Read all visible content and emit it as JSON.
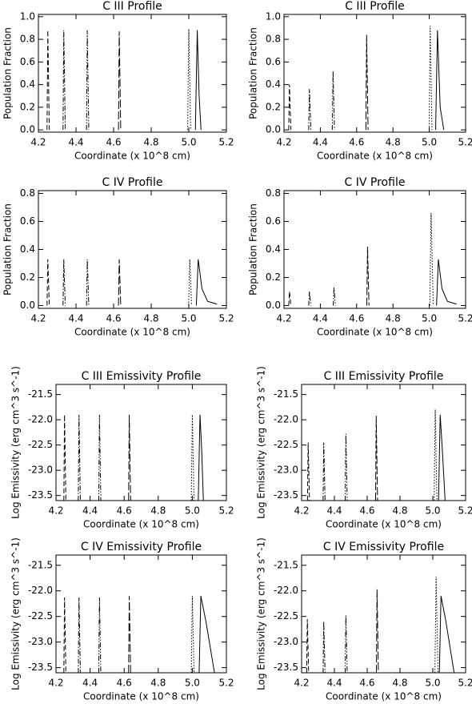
{
  "chart_data": [
    {
      "type": "line",
      "title": "C III Profile",
      "x_label": "Coordinate (x 10^8 cm)",
      "y_label": "Population Fraction",
      "xlim": [
        4.2,
        5.2
      ],
      "xticks": [
        4.2,
        4.4,
        4.6,
        4.8,
        {
          "value": 5,
          "label": "5.0"
        },
        5.2
      ],
      "ylim": [
        -0.02,
        1.02
      ],
      "yticks": [
        {
          "value": 0,
          "label": "0.0"
        },
        0.2,
        0.4,
        0.6,
        0.8,
        {
          "value": 1,
          "label": "1.0"
        }
      ],
      "color": "#000",
      "series": [
        {
          "style": "dash",
          "x": [
            4.246,
            4.25,
            4.258
          ],
          "values": [
            0,
            0.88,
            0
          ]
        },
        {
          "style": "dashdot",
          "x": [
            4.331,
            4.335,
            4.343
          ],
          "values": [
            0,
            0.88,
            0
          ]
        },
        {
          "style": "dashdotdot",
          "x": [
            4.456,
            4.46,
            4.468
          ],
          "values": [
            0,
            0.88,
            0
          ]
        },
        {
          "style": "longdash",
          "x": [
            4.626,
            4.63,
            4.638
          ],
          "values": [
            0,
            0.87,
            0
          ]
        },
        {
          "style": "dot",
          "x": [
            4.994,
            5.0,
            5.01
          ],
          "values": [
            0,
            0.89,
            0
          ]
        },
        {
          "style": "solid",
          "x": [
            5.035,
            5.045,
            5.055,
            5.065
          ],
          "values": [
            0,
            0.88,
            0.3,
            0
          ]
        }
      ]
    },
    {
      "type": "line",
      "title": "C III Profile",
      "x_label": "Coordinate (x 10^8 cm)",
      "y_label": "Population Fraction",
      "xlim": [
        4.2,
        5.2
      ],
      "xticks": [
        4.2,
        4.4,
        4.6,
        4.8,
        {
          "value": 5,
          "label": "5.0"
        },
        5.2
      ],
      "ylim": [
        -0.02,
        1.02
      ],
      "yticks": [
        {
          "value": 0,
          "label": "0.0"
        },
        0.2,
        0.4,
        0.6,
        0.8,
        {
          "value": 1,
          "label": "1.0"
        }
      ],
      "color": "#000",
      "series": [
        {
          "style": "dash",
          "x": [
            4.226,
            4.23,
            4.238
          ],
          "values": [
            0,
            0.4,
            0
          ]
        },
        {
          "style": "dashdot",
          "x": [
            4.336,
            4.34,
            4.348
          ],
          "values": [
            0,
            0.36,
            0
          ]
        },
        {
          "style": "dashdotdot",
          "x": [
            4.466,
            4.47,
            4.478
          ],
          "values": [
            0,
            0.52,
            0
          ]
        },
        {
          "style": "longdash",
          "x": [
            4.651,
            4.655,
            4.663
          ],
          "values": [
            0,
            0.84,
            0
          ]
        },
        {
          "style": "dot",
          "x": [
            4.999,
            5.005,
            5.015
          ],
          "values": [
            0,
            0.92,
            0
          ]
        },
        {
          "style": "solid",
          "x": [
            5.035,
            5.045,
            5.06,
            5.08
          ],
          "values": [
            0,
            0.88,
            0.2,
            0
          ]
        }
      ]
    },
    {
      "type": "line",
      "title": "C IV Profile",
      "x_label": "Coordinate (x 10^8 cm)",
      "y_label": "Population Fraction",
      "xlim": [
        4.2,
        5.2
      ],
      "xticks": [
        4.2,
        4.4,
        4.6,
        4.8,
        {
          "value": 5,
          "label": "5.0"
        },
        5.2
      ],
      "ylim": [
        -0.02,
        0.82
      ],
      "yticks": [
        {
          "value": 0,
          "label": "0.0"
        },
        0.2,
        0.4,
        0.6,
        0.8
      ],
      "color": "#000",
      "series": [
        {
          "style": "dash",
          "x": [
            4.246,
            4.25,
            4.258
          ],
          "values": [
            0,
            0.33,
            0
          ]
        },
        {
          "style": "dashdot",
          "x": [
            4.331,
            4.335,
            4.343
          ],
          "values": [
            0,
            0.33,
            0
          ]
        },
        {
          "style": "dashdotdot",
          "x": [
            4.456,
            4.46,
            4.468
          ],
          "values": [
            0,
            0.33,
            0
          ]
        },
        {
          "style": "longdash",
          "x": [
            4.626,
            4.63,
            4.638
          ],
          "values": [
            0,
            0.33,
            0
          ]
        },
        {
          "style": "dot",
          "x": [
            4.999,
            5.005,
            5.015
          ],
          "values": [
            0,
            0.33,
            0
          ]
        },
        {
          "style": "solid",
          "x": [
            5.04,
            5.05,
            5.07,
            5.1,
            5.15
          ],
          "values": [
            0,
            0.33,
            0.12,
            0.03,
            0.01
          ]
        }
      ]
    },
    {
      "type": "line",
      "title": "C IV Profile",
      "x_label": "Coordinate (x 10^8 cm)",
      "y_label": "Population Fraction",
      "xlim": [
        4.2,
        5.2
      ],
      "xticks": [
        4.2,
        4.4,
        4.6,
        4.8,
        {
          "value": 5,
          "label": "5.0"
        },
        5.2
      ],
      "ylim": [
        -0.02,
        0.82
      ],
      "yticks": [
        {
          "value": 0,
          "label": "0.0"
        },
        0.2,
        0.4,
        0.6,
        0.8
      ],
      "color": "#000",
      "series": [
        {
          "style": "dash",
          "x": [
            4.226,
            4.23,
            4.238
          ],
          "values": [
            0,
            0.1,
            0
          ]
        },
        {
          "style": "dashdot",
          "x": [
            4.336,
            4.34,
            4.348
          ],
          "values": [
            0,
            0.1,
            0
          ]
        },
        {
          "style": "dashdotdot",
          "x": [
            4.471,
            4.475,
            4.483
          ],
          "values": [
            0,
            0.13,
            0
          ]
        },
        {
          "style": "longdash",
          "x": [
            4.656,
            4.66,
            4.668
          ],
          "values": [
            0,
            0.42,
            0
          ]
        },
        {
          "style": "dot",
          "x": [
            5.003,
            5.01,
            5.022
          ],
          "values": [
            0,
            0.66,
            0
          ]
        },
        {
          "style": "solid",
          "x": [
            5.04,
            5.05,
            5.07,
            5.1,
            5.15
          ],
          "values": [
            0,
            0.33,
            0.12,
            0.03,
            0.01
          ]
        }
      ]
    },
    {
      "type": "line",
      "title": "C III Emissivity Profile",
      "x_label": "Coordinate (x 10^8 cm)",
      "y_label": "Log Emissivity (erg cm^3 s^-1)",
      "xlim": [
        4.2,
        5.2
      ],
      "xticks": [
        4.2,
        4.4,
        4.6,
        4.8,
        {
          "value": 5,
          "label": "5.0"
        },
        5.2
      ],
      "ylim": [
        -23.6,
        -21.3
      ],
      "yticks": [
        -21.5,
        {
          "value": -22,
          "label": "-22.0"
        },
        -22.5,
        {
          "value": -23,
          "label": "-23.0"
        },
        -23.5
      ],
      "color": "#000",
      "series": [
        {
          "style": "dash",
          "x": [
            4.246,
            4.25,
            4.258
          ],
          "values": [
            -23.6,
            -21.9,
            -23.6
          ]
        },
        {
          "style": "dashdot",
          "x": [
            4.331,
            4.335,
            4.343
          ],
          "values": [
            -23.6,
            -21.9,
            -23.6
          ]
        },
        {
          "style": "dashdotdot",
          "x": [
            4.451,
            4.455,
            4.463
          ],
          "values": [
            -23.6,
            -21.9,
            -23.6
          ]
        },
        {
          "style": "longdash",
          "x": [
            4.626,
            4.63,
            4.638
          ],
          "values": [
            -23.6,
            -21.9,
            -23.6
          ]
        },
        {
          "style": "dot",
          "x": [
            4.994,
            5.0,
            5.01
          ],
          "values": [
            -23.6,
            -21.9,
            -23.6
          ]
        },
        {
          "style": "solid",
          "x": [
            5.035,
            5.045,
            5.055,
            5.065
          ],
          "values": [
            -23.6,
            -21.9,
            -22.6,
            -23.6
          ]
        }
      ]
    },
    {
      "type": "line",
      "title": "C III Emissivity Profile",
      "x_label": "Coordinate (x 10^8 cm)",
      "y_label": "Log Emissivity (erg cm^3 s^-1)",
      "xlim": [
        4.2,
        5.2
      ],
      "xticks": [
        4.2,
        4.4,
        4.6,
        4.8,
        {
          "value": 5,
          "label": "5.0"
        },
        5.2
      ],
      "ylim": [
        -23.6,
        -21.3
      ],
      "yticks": [
        -21.5,
        {
          "value": -22,
          "label": "-22.0"
        },
        -22.5,
        {
          "value": -23,
          "label": "-23.0"
        },
        -23.5
      ],
      "color": "#000",
      "series": [
        {
          "style": "dash",
          "x": [
            4.236,
            4.24,
            4.248
          ],
          "values": [
            -23.6,
            -22.45,
            -23.6
          ]
        },
        {
          "style": "dashdot",
          "x": [
            4.331,
            4.335,
            4.343
          ],
          "values": [
            -23.6,
            -22.45,
            -23.6
          ]
        },
        {
          "style": "dashdotdot",
          "x": [
            4.466,
            4.47,
            4.478
          ],
          "values": [
            -23.6,
            -22.28,
            -23.6
          ]
        },
        {
          "style": "longdash",
          "x": [
            4.651,
            4.655,
            4.663
          ],
          "values": [
            -23.6,
            -21.92,
            -23.6
          ]
        },
        {
          "style": "dot",
          "x": [
            5.008,
            5.015,
            5.025
          ],
          "values": [
            -23.6,
            -21.8,
            -23.6
          ]
        },
        {
          "style": "solid",
          "x": [
            5.035,
            5.045,
            5.06,
            5.075
          ],
          "values": [
            -23.6,
            -21.9,
            -22.7,
            -23.6
          ]
        }
      ]
    },
    {
      "type": "line",
      "title": "C IV Emissivity Profile",
      "x_label": "Coordinate (x 10^8 cm)",
      "y_label": "Log Emissivity (erg cm^3 s^-1)",
      "xlim": [
        4.2,
        5.2
      ],
      "xticks": [
        4.2,
        4.4,
        4.6,
        4.8,
        {
          "value": 5,
          "label": "5.0"
        },
        5.2
      ],
      "ylim": [
        -23.6,
        -21.3
      ],
      "yticks": [
        -21.5,
        {
          "value": -22,
          "label": "-22.0"
        },
        -22.5,
        {
          "value": -23,
          "label": "-23.0"
        },
        -23.5
      ],
      "color": "#000",
      "series": [
        {
          "style": "dash",
          "x": [
            4.246,
            4.25,
            4.258
          ],
          "values": [
            -23.6,
            -22.13,
            -23.6
          ]
        },
        {
          "style": "dashdot",
          "x": [
            4.331,
            4.335,
            4.343
          ],
          "values": [
            -23.6,
            -22.13,
            -23.6
          ]
        },
        {
          "style": "dashdotdot",
          "x": [
            4.451,
            4.455,
            4.463
          ],
          "values": [
            -23.6,
            -22.13,
            -23.6
          ]
        },
        {
          "style": "longdash",
          "x": [
            4.626,
            4.63,
            4.638
          ],
          "values": [
            -23.6,
            -22.1,
            -23.6
          ]
        },
        {
          "style": "dot",
          "x": [
            4.994,
            5.0,
            5.01
          ],
          "values": [
            -23.6,
            -22.1,
            -23.6
          ]
        },
        {
          "style": "solid",
          "x": [
            5.04,
            5.05,
            5.08,
            5.11,
            5.13
          ],
          "values": [
            -23.6,
            -22.1,
            -22.6,
            -23.2,
            -23.6
          ]
        }
      ]
    },
    {
      "type": "line",
      "title": "C IV Emissivity Profile",
      "x_label": "Coordinate (x 10^8 cm)",
      "y_label": "Log Emissivity (erg cm^3 s^-1)",
      "xlim": [
        4.2,
        5.2
      ],
      "xticks": [
        4.2,
        4.4,
        4.6,
        4.8,
        {
          "value": 5,
          "label": "5.0"
        },
        5.2
      ],
      "ylim": [
        -23.6,
        -21.3
      ],
      "yticks": [
        -21.5,
        {
          "value": -22,
          "label": "-22.0"
        },
        -22.5,
        {
          "value": -23,
          "label": "-23.0"
        },
        -23.5
      ],
      "color": "#000",
      "series": [
        {
          "style": "dash",
          "x": [
            4.231,
            4.235,
            4.243
          ],
          "values": [
            -23.6,
            -22.55,
            -23.6
          ]
        },
        {
          "style": "dashdot",
          "x": [
            4.331,
            4.335,
            4.343
          ],
          "values": [
            -23.6,
            -22.6,
            -23.6
          ]
        },
        {
          "style": "dashdotdot",
          "x": [
            4.466,
            4.47,
            4.478
          ],
          "values": [
            -23.6,
            -22.48,
            -23.6
          ]
        },
        {
          "style": "longdash",
          "x": [
            4.656,
            4.66,
            4.668
          ],
          "values": [
            -23.6,
            -21.97,
            -23.6
          ]
        },
        {
          "style": "dot",
          "x": [
            5.013,
            5.02,
            5.032
          ],
          "values": [
            -23.6,
            -21.72,
            -23.6
          ]
        },
        {
          "style": "solid",
          "x": [
            5.04,
            5.05,
            5.08,
            5.11,
            5.13
          ],
          "values": [
            -23.6,
            -22.1,
            -22.6,
            -23.2,
            -23.6
          ]
        }
      ]
    }
  ]
}
